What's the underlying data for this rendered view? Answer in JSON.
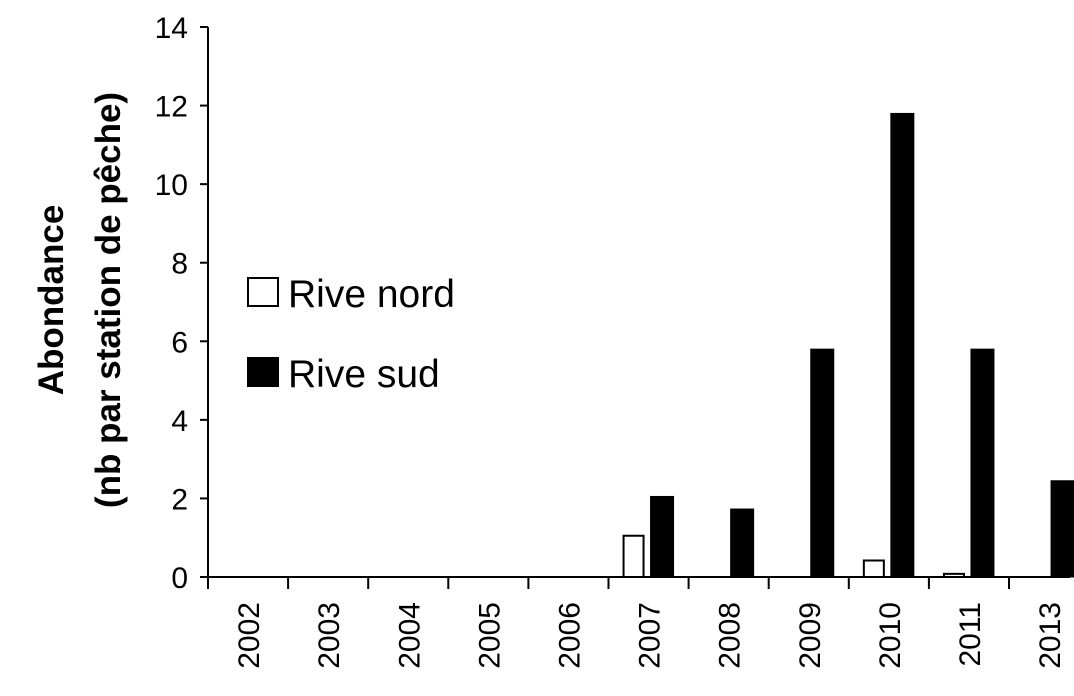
{
  "chart_data": {
    "type": "bar",
    "ylabel_line1": "Abondance",
    "ylabel_line2": "(nb par station de pêche)",
    "categories": [
      "2002",
      "2003",
      "2004",
      "2005",
      "2006",
      "2007",
      "2008",
      "2009",
      "2010",
      "2011",
      "2013"
    ],
    "series": [
      {
        "name": "Rive nord",
        "color": "#ffffff",
        "stroke": "#000000",
        "values": [
          0,
          0,
          0,
          0,
          0,
          1.05,
          0,
          0,
          0.42,
          0.08,
          0
        ]
      },
      {
        "name": "Rive sud",
        "color": "#000000",
        "stroke": "#000000",
        "values": [
          0,
          0,
          0,
          0,
          0,
          2.05,
          1.73,
          5.8,
          11.8,
          5.8,
          2.45
        ]
      }
    ],
    "ylim": [
      0,
      14
    ],
    "yticks": [
      0,
      2,
      4,
      6,
      8,
      10,
      12,
      14
    ],
    "grid": false,
    "legend_position": "left-center"
  }
}
